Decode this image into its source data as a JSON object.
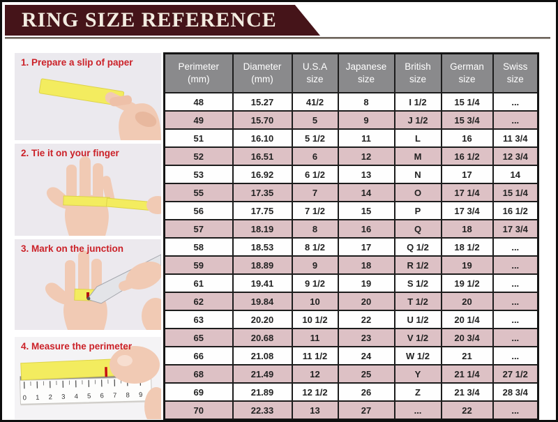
{
  "banner": {
    "title": "RING SIZE REFERENCE"
  },
  "colors": {
    "banner_maroon": "#451419",
    "header_gray": "#8a8a8c",
    "row_pink": "#ddc1c5",
    "step_label_red": "#cb2128",
    "paper_yellow": "#f3ec5f"
  },
  "steps": [
    {
      "label": "1. Prepare a slip of paper"
    },
    {
      "label": "2. Tie it on your finger"
    },
    {
      "label": "3. Mark on the junction"
    },
    {
      "label": "4. Measure the perimeter",
      "ruler_numbers": [
        "0",
        "1",
        "2",
        "3",
        "4",
        "5",
        "6",
        "7",
        "8",
        "9"
      ]
    }
  ],
  "chart_data": {
    "type": "table",
    "title": "RING SIZE REFERENCE",
    "columns": [
      "Perimeter (mm)",
      "Diameter (mm)",
      "U.S.A size",
      "Japanese size",
      "British size",
      "German size",
      "Swiss size"
    ],
    "header_lines": [
      [
        "Perimeter",
        "(mm)"
      ],
      [
        "Diameter",
        "(mm)"
      ],
      [
        "U.S.A",
        "size"
      ],
      [
        "Japanese",
        "size"
      ],
      [
        "British",
        "size"
      ],
      [
        "German",
        "size"
      ],
      [
        "Swiss",
        "size"
      ]
    ],
    "rows": [
      [
        "48",
        "15.27",
        "41/2",
        "8",
        "I 1/2",
        "15 1/4",
        "..."
      ],
      [
        "49",
        "15.70",
        "5",
        "9",
        "J 1/2",
        "15 3/4",
        "..."
      ],
      [
        "51",
        "16.10",
        "5 1/2",
        "11",
        "L",
        "16",
        "11 3/4"
      ],
      [
        "52",
        "16.51",
        "6",
        "12",
        "M",
        "16 1/2",
        "12 3/4"
      ],
      [
        "53",
        "16.92",
        "6 1/2",
        "13",
        "N",
        "17",
        "14"
      ],
      [
        "55",
        "17.35",
        "7",
        "14",
        "O",
        "17 1/4",
        "15 1/4"
      ],
      [
        "56",
        "17.75",
        "7 1/2",
        "15",
        "P",
        "17 3/4",
        "16 1/2"
      ],
      [
        "57",
        "18.19",
        "8",
        "16",
        "Q",
        "18",
        "17 3/4"
      ],
      [
        "58",
        "18.53",
        "8 1/2",
        "17",
        "Q 1/2",
        "18 1/2",
        "..."
      ],
      [
        "59",
        "18.89",
        "9",
        "18",
        "R 1/2",
        "19",
        "..."
      ],
      [
        "61",
        "19.41",
        "9 1/2",
        "19",
        "S 1/2",
        "19 1/2",
        "..."
      ],
      [
        "62",
        "19.84",
        "10",
        "20",
        "T 1/2",
        "20",
        "..."
      ],
      [
        "63",
        "20.20",
        "10 1/2",
        "22",
        "U 1/2",
        "20 1/4",
        "..."
      ],
      [
        "65",
        "20.68",
        "11",
        "23",
        "V 1/2",
        "20 3/4",
        "..."
      ],
      [
        "66",
        "21.08",
        "11 1/2",
        "24",
        "W 1/2",
        "21",
        "..."
      ],
      [
        "68",
        "21.49",
        "12",
        "25",
        "Y",
        "21 1/4",
        "27 1/2"
      ],
      [
        "69",
        "21.89",
        "12 1/2",
        "26",
        "Z",
        "21 3/4",
        "28 3/4"
      ],
      [
        "70",
        "22.33",
        "13",
        "27",
        "...",
        "22",
        "..."
      ]
    ]
  }
}
